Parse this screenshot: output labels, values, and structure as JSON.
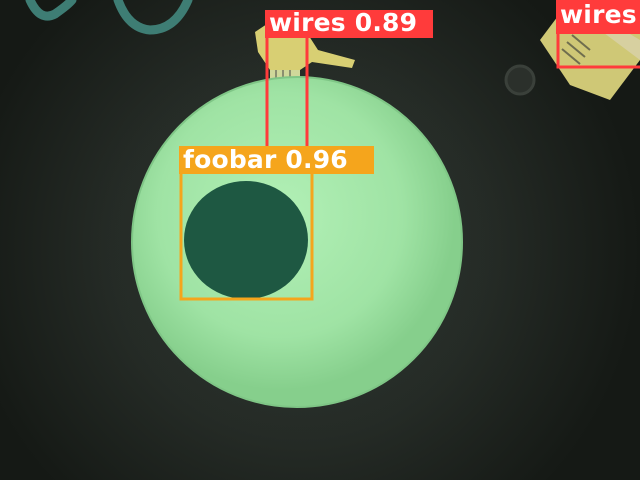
{
  "image": {
    "description_colors": {
      "background": "#1c221d",
      "vignette": "#2a302b",
      "lit_disc": "#9ee6a6",
      "dark_spot": "#1e5a44",
      "pcb_trace": "#d9d27a",
      "gear_outline": "#3e7d74"
    }
  },
  "detections": [
    {
      "id": "det-wires-1",
      "class": "wires",
      "confidence": "0.89",
      "label": "wires 0.89",
      "color": "#ff3b3b"
    },
    {
      "id": "det-foobar",
      "class": "foobar",
      "confidence": "0.96",
      "label": "foobar 0.96",
      "color": "#f5a51c"
    },
    {
      "id": "det-wires-2",
      "class": "wires",
      "confidence": "",
      "label": "wires",
      "color": "#ff3b3b"
    }
  ]
}
